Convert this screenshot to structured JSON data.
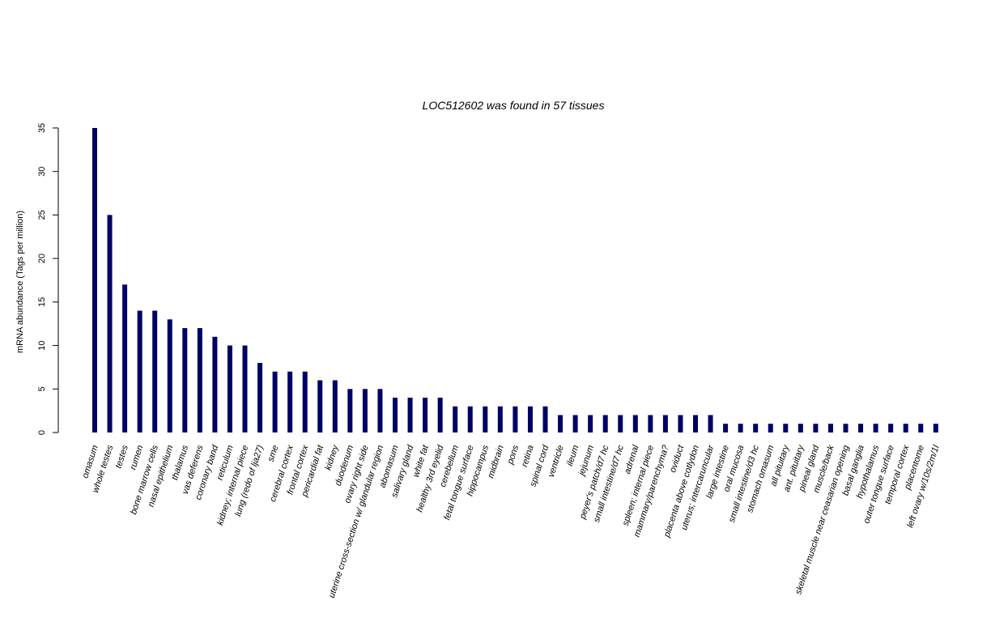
{
  "chart_data": {
    "type": "bar",
    "title": "LOC512602  was found in  57  tissues",
    "xlabel": "",
    "ylabel": "mRNA abundance (Tags per million)",
    "ylim": [
      0,
      35
    ],
    "yticks": [
      "0",
      "5",
      "10",
      "15",
      "20",
      "25",
      "30",
      "35"
    ],
    "grid": false,
    "bar_color": "#000066",
    "categories": [
      "omasum",
      "whole testes",
      "testes",
      "rumen",
      "bone marrow cells",
      "nasal epithelium",
      "thalamus",
      "vas deferens",
      "coronary band",
      "reticulum",
      "kidney; internal piece",
      "lung (redo of lja27)",
      "sme",
      "cerebral cortex",
      "frontal cortex",
      "pericardial fat",
      "kidney",
      "duodenum",
      "ovary right side",
      "uterine cross-section w/ glandular region",
      "abomasum",
      "salivary gland",
      "white fat",
      "healthy 3rd eyelid",
      "cerebellum",
      "fetal tongue surface",
      "hippocampus",
      "midbrain",
      "pons",
      "retina",
      "spinal cord",
      "ventricle",
      "ileum",
      "jejunum",
      "peyer's patch/d7 hc",
      "small intestine/d7 hc",
      "adrenal",
      "spleen; internal piece",
      "mammary/parenchyma?",
      "oviduct",
      "placenta above cotlydon",
      "uterus; intercaruncular",
      "large intestine",
      "oral mucosa",
      "small intestine/d3 hc",
      "stomach omasum",
      "all pituitary",
      "ant. pituitary",
      "pineal gland",
      "muscle/back",
      "skeletal muscle near ceasarian opening",
      "basal ganglia",
      "hypothalamus",
      "outer tongue surface",
      "temporal cortex",
      "placentome",
      "left ovary w/10s/2m/1l"
    ],
    "values": [
      35,
      25,
      17,
      14,
      14,
      13,
      12,
      12,
      11,
      10,
      10,
      8,
      7,
      7,
      7,
      6,
      6,
      5,
      5,
      5,
      4,
      4,
      4,
      4,
      3,
      3,
      3,
      3,
      3,
      3,
      3,
      2,
      2,
      2,
      2,
      2,
      2,
      2,
      2,
      2,
      2,
      2,
      1,
      1,
      1,
      1,
      1,
      1,
      1,
      1,
      1,
      1,
      1,
      1,
      1,
      1,
      1
    ]
  }
}
